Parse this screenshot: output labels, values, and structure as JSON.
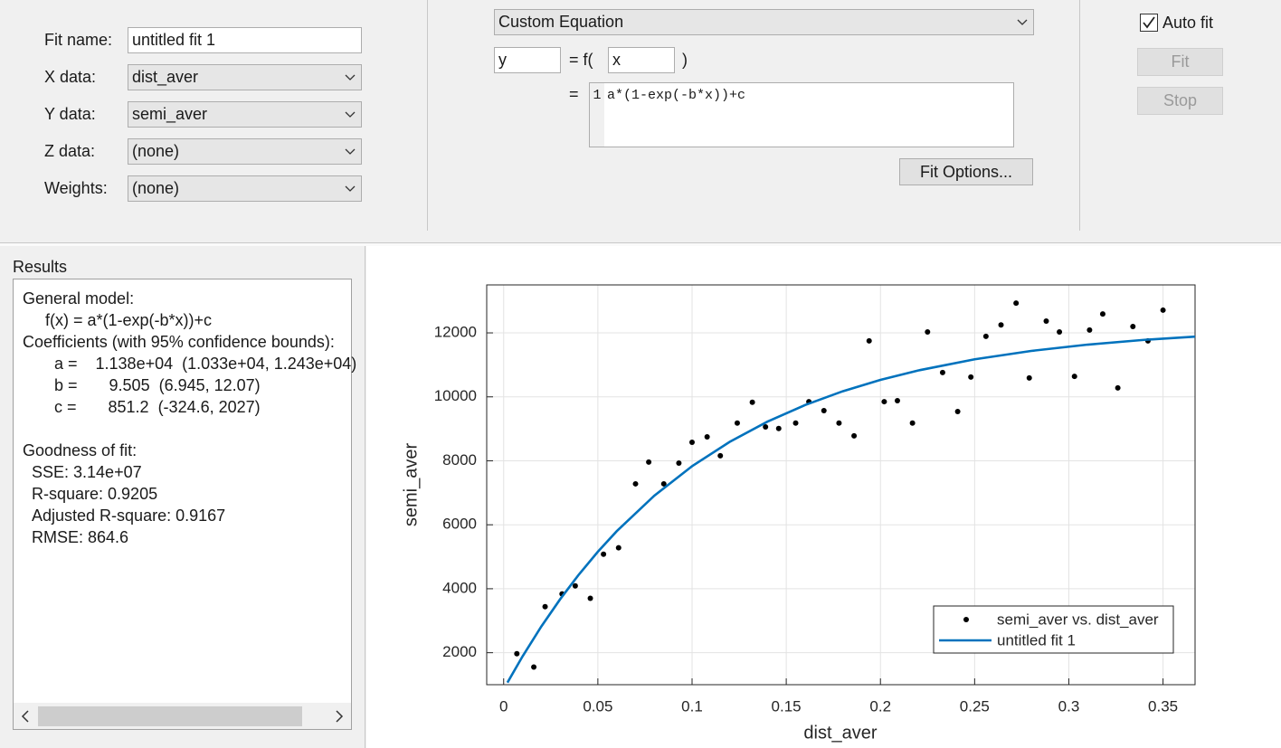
{
  "fit_settings": {
    "fit_name_label": "Fit name:",
    "fit_name": "untitled fit 1",
    "x_data_label": "X data:",
    "x_data": "dist_aver",
    "y_data_label": "Y data:",
    "y_data": "semi_aver",
    "z_data_label": "Z data:",
    "z_data": "(none)",
    "weights_label": "Weights:",
    "weights": "(none)"
  },
  "equation": {
    "type": "Custom Equation",
    "dependent": "y",
    "equals_f": "= f(",
    "independent": "x",
    "close_paren": ")",
    "equals": "=",
    "line_number": "1",
    "expression": "a*(1-exp(-b*x))+c",
    "fit_options": "Fit Options..."
  },
  "fit_controls": {
    "auto_fit": "Auto fit",
    "auto_fit_checked": true,
    "fit": "Fit",
    "stop": "Stop"
  },
  "results": {
    "title": "Results",
    "lines": [
      "General model:",
      "f(x) = a*(1-exp(-b*x))+c",
      "Coefficients (with 95% confidence bounds):",
      "a =    1.138e+04  (1.033e+04, 1.243e+04)",
      "b =       9.505  (6.945, 12.07)",
      "c =       851.2  (-324.6, 2027)",
      "Goodness of fit:",
      "SSE: 3.14e+07",
      "R-square: 0.9205",
      "Adjusted R-square: 0.9167",
      "RMSE: 864.6"
    ]
  },
  "chart_data": {
    "type": "scatter",
    "x_label": "dist_aver",
    "y_label": "semi_aver",
    "xlim": [
      -0.009,
      0.367
    ],
    "ylim": [
      1000,
      13500
    ],
    "xticks": [
      0,
      0.05,
      0.1,
      0.15,
      0.2,
      0.25,
      0.3,
      0.35
    ],
    "yticks": [
      2000,
      4000,
      6000,
      8000,
      10000,
      12000
    ],
    "grid": true,
    "legend": "southeast",
    "series": [
      {
        "name": "semi_aver vs. dist_aver",
        "color": "#000000",
        "mode": "markers",
        "x": [
          0.007,
          0.016,
          0.022,
          0.031,
          0.038,
          0.046,
          0.053,
          0.061,
          0.07,
          0.077,
          0.085,
          0.093,
          0.1,
          0.108,
          0.115,
          0.124,
          0.132,
          0.139,
          0.146,
          0.155,
          0.162,
          0.17,
          0.178,
          0.186,
          0.194,
          0.202,
          0.209,
          0.217,
          0.225,
          0.233,
          0.241,
          0.248,
          0.256,
          0.264,
          0.272,
          0.279,
          0.288,
          0.295,
          0.303,
          0.311,
          0.318,
          0.326,
          0.334,
          0.342,
          0.35
        ],
        "y": [
          1970,
          1550,
          3440,
          3840,
          4090,
          3700,
          5080,
          5280,
          7280,
          7960,
          7280,
          7930,
          8580,
          8750,
          8160,
          9180,
          9830,
          9060,
          9010,
          9180,
          9850,
          9570,
          9180,
          8780,
          11750,
          9850,
          9880,
          9180,
          12030,
          10760,
          9540,
          10620,
          11890,
          12250,
          12930,
          10590,
          12370,
          12030,
          10640,
          12090,
          12590,
          10280,
          12200,
          11750,
          12710
        ]
      },
      {
        "name": "untitled fit 1",
        "color": "#0072bd",
        "mode": "line",
        "x": [
          0.002,
          0.01,
          0.02,
          0.03,
          0.04,
          0.05,
          0.06,
          0.08,
          0.1,
          0.12,
          0.14,
          0.16,
          0.18,
          0.2,
          0.22,
          0.25,
          0.28,
          0.31,
          0.34,
          0.367
        ],
        "y": [
          1065,
          1883,
          2821,
          3674,
          4450,
          5156,
          5798,
          6911,
          7832,
          8594,
          9223,
          9744,
          10175,
          10531,
          10825,
          11174,
          11436,
          11633,
          11782,
          11883
        ]
      }
    ]
  }
}
